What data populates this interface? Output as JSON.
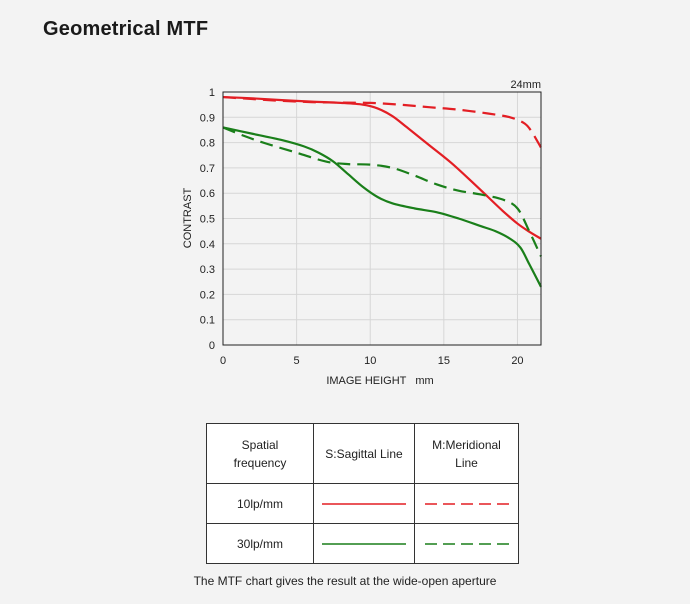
{
  "page": {
    "title": "Geometrical MTF",
    "caption": "The MTF chart gives the result at the wide-open aperture"
  },
  "legend": {
    "header": {
      "frequency": "Spatial frequency",
      "sagittal": "S:Sagittal Line",
      "meridional": "M:Meridional Line"
    },
    "rows": [
      {
        "label": "10lp/mm",
        "color": "#e31e24"
      },
      {
        "label": "30lp/mm",
        "color": "#1a7f1a"
      }
    ]
  },
  "chart_data": {
    "type": "line",
    "annotation": "24mm",
    "xlabel": "IMAGE HEIGHT   mm",
    "ylabel": "CONTRAST",
    "xlim": [
      0,
      21.6
    ],
    "ylim": [
      0,
      1
    ],
    "xticks": [
      "0",
      "5",
      "10",
      "15",
      "20"
    ],
    "yticks": [
      "0",
      "0.1",
      "0.2",
      "0.3",
      "0.4",
      "0.5",
      "0.6",
      "0.7",
      "0.8",
      "0.9",
      "1"
    ],
    "grid": true,
    "series": [
      {
        "freq": "10lp/mm",
        "line": "S:Sagittal Line",
        "color": "#e31e24",
        "dash": false,
        "points": [
          [
            0,
            0.98
          ],
          [
            2,
            0.975
          ],
          [
            4,
            0.968
          ],
          [
            6,
            0.962
          ],
          [
            8,
            0.957
          ],
          [
            9.5,
            0.95
          ],
          [
            10.5,
            0.935
          ],
          [
            11.5,
            0.905
          ],
          [
            12.5,
            0.86
          ],
          [
            14,
            0.79
          ],
          [
            15.5,
            0.72
          ],
          [
            17,
            0.64
          ],
          [
            18,
            0.585
          ],
          [
            19,
            0.53
          ],
          [
            20,
            0.48
          ],
          [
            20.8,
            0.448
          ],
          [
            21.6,
            0.42
          ]
        ]
      },
      {
        "freq": "10lp/mm",
        "line": "M:Meridional Line",
        "color": "#e31e24",
        "dash": true,
        "points": [
          [
            0,
            0.98
          ],
          [
            2,
            0.972
          ],
          [
            4,
            0.965
          ],
          [
            6,
            0.96
          ],
          [
            8,
            0.958
          ],
          [
            10,
            0.957
          ],
          [
            12,
            0.95
          ],
          [
            14,
            0.94
          ],
          [
            16,
            0.93
          ],
          [
            18,
            0.915
          ],
          [
            19.5,
            0.9
          ],
          [
            20.5,
            0.875
          ],
          [
            21,
            0.84
          ],
          [
            21.6,
            0.78
          ]
        ]
      },
      {
        "freq": "30lp/mm",
        "line": "S:Sagittal Line",
        "color": "#1a7f1a",
        "dash": false,
        "points": [
          [
            0,
            0.86
          ],
          [
            2,
            0.835
          ],
          [
            4,
            0.81
          ],
          [
            5.5,
            0.785
          ],
          [
            6.5,
            0.76
          ],
          [
            7.5,
            0.725
          ],
          [
            8.5,
            0.675
          ],
          [
            9.5,
            0.625
          ],
          [
            10.5,
            0.585
          ],
          [
            11.5,
            0.56
          ],
          [
            13,
            0.54
          ],
          [
            14.5,
            0.525
          ],
          [
            16,
            0.5
          ],
          [
            17.5,
            0.47
          ],
          [
            18.5,
            0.45
          ],
          [
            19.5,
            0.42
          ],
          [
            20.2,
            0.385
          ],
          [
            20.8,
            0.32
          ],
          [
            21.6,
            0.23
          ]
        ]
      },
      {
        "freq": "30lp/mm",
        "line": "M:Meridional Line",
        "color": "#1a7f1a",
        "dash": true,
        "points": [
          [
            0,
            0.86
          ],
          [
            1.5,
            0.825
          ],
          [
            3,
            0.795
          ],
          [
            5,
            0.76
          ],
          [
            7,
            0.725
          ],
          [
            8.5,
            0.715
          ],
          [
            10,
            0.713
          ],
          [
            11.5,
            0.7
          ],
          [
            13,
            0.67
          ],
          [
            14.5,
            0.635
          ],
          [
            16,
            0.61
          ],
          [
            17.5,
            0.595
          ],
          [
            19,
            0.575
          ],
          [
            20,
            0.54
          ],
          [
            20.8,
            0.45
          ],
          [
            21.6,
            0.35
          ]
        ]
      }
    ]
  }
}
